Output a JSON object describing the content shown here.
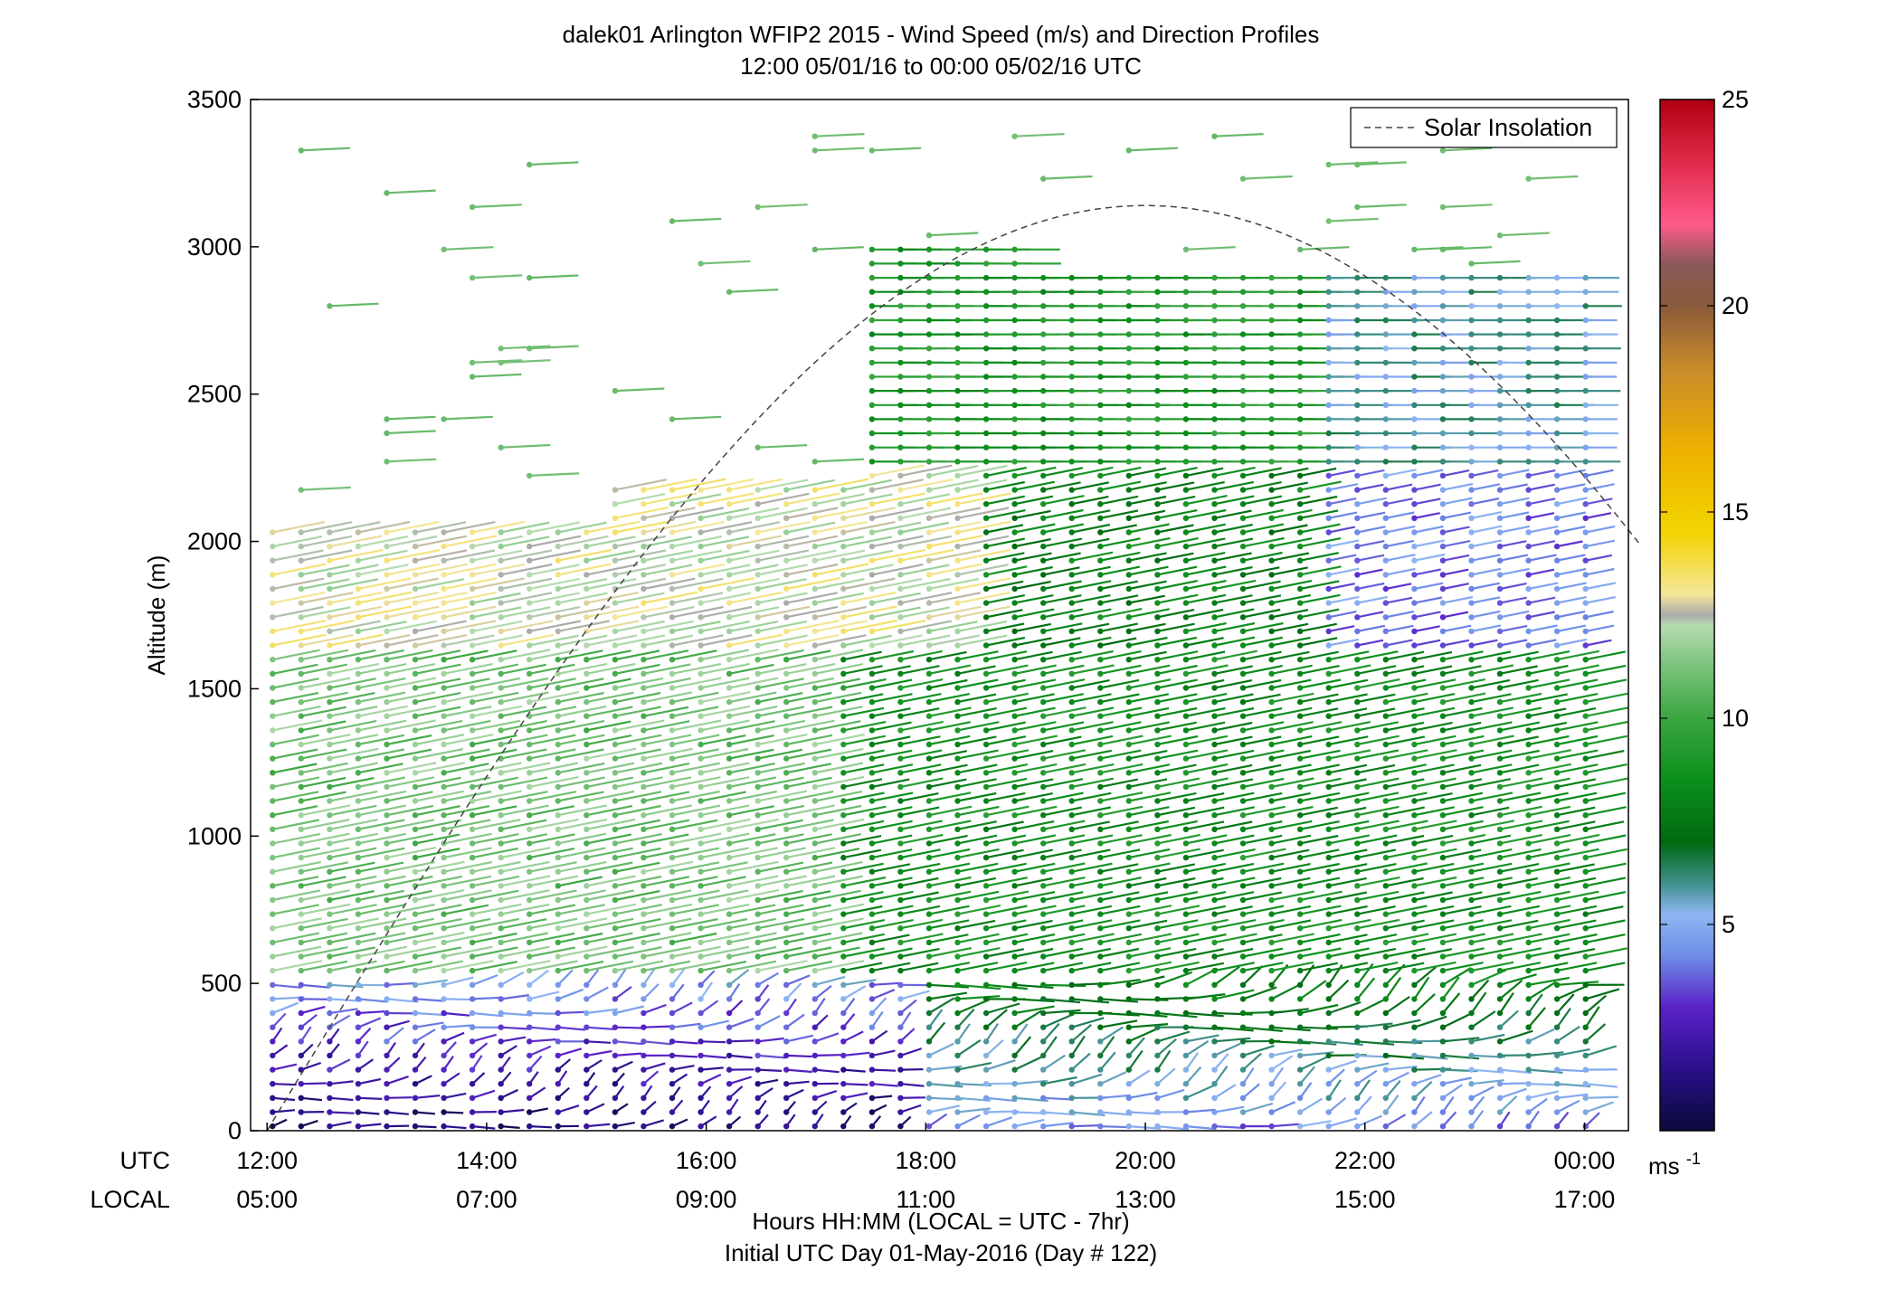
{
  "chart_data": {
    "type": "wind-barb profile (scatter)",
    "title_line1": "dalek01 Arlington WFIP2 2015 - Wind Speed (m/s) and Direction Profiles",
    "title_line2": "12:00 05/01/16 to 00:00 05/02/16  UTC",
    "ylabel": "Altitude (m)",
    "xlabel_line1": "Hours HH:MM  (LOCAL = UTC - 7hr)",
    "xlabel_line2": "Initial UTC Day 01-May-2016 (Day # 122)",
    "xrow_utc_label": "UTC",
    "xrow_local_label": "LOCAL",
    "ylim": [
      0,
      3500
    ],
    "yticks": [
      "0",
      "500",
      "1000",
      "1500",
      "2000",
      "2500",
      "3000",
      "3500"
    ],
    "xlim_hours_utc": [
      11.85,
      24.4
    ],
    "xticks_utc": [
      "12:00",
      "14:00",
      "16:00",
      "18:00",
      "20:00",
      "22:00",
      "00:00"
    ],
    "xticks_local": [
      "05:00",
      "07:00",
      "09:00",
      "11:00",
      "13:00",
      "15:00",
      "17:00"
    ],
    "legend": {
      "label": "Solar Insolation",
      "position": "top-right"
    },
    "colorbar": {
      "label": "ms",
      "label_exp": "-1",
      "range": [
        0,
        25
      ],
      "ticks": [
        "5",
        "10",
        "15",
        "20",
        "25"
      ]
    },
    "solar_insolation_curve": {
      "peak_hour_utc": 20.0,
      "peak_altitude": 3140,
      "start_hour_utc": 12.0,
      "end_hour_utc": 24.5
    },
    "profiles_summary": [
      {
        "period_utc": "12:00-15:00",
        "below_500m_speed_ms": 2,
        "500-2000m_speed_ms": 11,
        "dir": "SW"
      },
      {
        "period_utc": "15:00-18:00",
        "below_500m_speed_ms": 4,
        "1200-2000m_speed_ms": 13,
        "dir": "SW"
      },
      {
        "period_utc": "18:00-21:00",
        "below_1000m_speed_ms": 8,
        "2500-3200m_speed_ms": 10,
        "dir": "W"
      },
      {
        "period_utc": "21:00-00:00",
        "below_1500m_speed_ms": 8,
        "2000-2900m_speed_ms": 5,
        "dir": "SW"
      }
    ]
  }
}
